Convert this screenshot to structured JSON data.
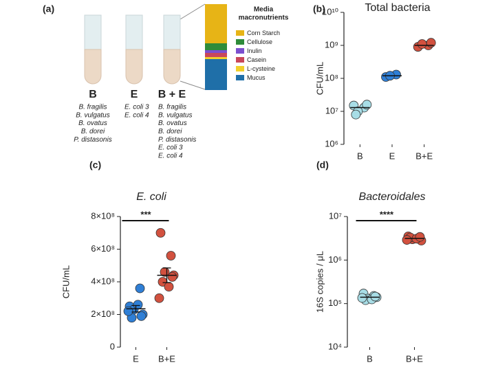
{
  "diagram": {
    "panel_label": "(a)",
    "groups": [
      {
        "label": "B",
        "color": "#7cc6c9",
        "species": [
          "B. fragilis",
          "B. vulgatus",
          "B. ovatus",
          "B. dorei",
          "P. distasonis"
        ]
      },
      {
        "label": "E",
        "color": "#3d86c6",
        "species": [
          "E. coli 3",
          "E. coli 4"
        ]
      },
      {
        "label": "B + E",
        "color": "#c0504d",
        "species": [
          "B. fragilis",
          "B. vulgatus",
          "B. ovatus",
          "B. dorei",
          "P. distasonis",
          "E. coli 3",
          "E. coli 4"
        ]
      }
    ],
    "media": {
      "title_lines": [
        "Media",
        "macronutrients"
      ],
      "items": [
        {
          "name": "Corn Starch",
          "color": "#e7b416"
        },
        {
          "name": "Cellulose",
          "color": "#2e8b3a"
        },
        {
          "name": "Inulin",
          "color": "#7b4fcf"
        },
        {
          "name": "Casein",
          "color": "#c9475a"
        },
        {
          "name": "L-cysteine",
          "color": "#f2d02b"
        },
        {
          "name": "Mucus",
          "color": "#1f6fa8"
        }
      ]
    }
  },
  "chart_data": [
    {
      "type": "strip",
      "panel_label": "(b)",
      "title": "Total bacteria",
      "y_label": "CFU/mL",
      "log_y": true,
      "categories": [
        "B",
        "E",
        "B+E"
      ],
      "colors": [
        "#a8dde6",
        "#2f7fd6",
        "#d2513f"
      ],
      "values": [
        [
          15000000,
          13000000,
          10000000,
          16000000,
          8000000
        ],
        [
          110000000,
          130000000,
          120000000
        ],
        [
          900000000,
          1000000000,
          1100000000,
          1200000000
        ]
      ],
      "center": [
        13000000,
        120000000,
        1000000000
      ],
      "ylim": [
        1000000,
        10000000000
      ],
      "yticks": [
        {
          "value": 1000000,
          "label": "10⁶"
        },
        {
          "value": 10000000,
          "label": "10⁷"
        },
        {
          "value": 100000000,
          "label": "10⁸"
        },
        {
          "value": 1000000000,
          "label": "10⁹"
        },
        {
          "value": 10000000000,
          "label": "10¹⁰"
        }
      ]
    },
    {
      "type": "strip",
      "panel_label": "(c)",
      "title": "E. coli",
      "title_italic": true,
      "y_label": "CFU/mL",
      "log_y": false,
      "categories": [
        "E",
        "B+E"
      ],
      "colors": [
        "#2f7fd6",
        "#d2513f"
      ],
      "values": [
        [
          250000000,
          360000000,
          230000000,
          200000000,
          180000000,
          260000000,
          220000000,
          190000000
        ],
        [
          700000000,
          560000000,
          460000000,
          440000000,
          400000000,
          370000000,
          300000000,
          430000000
        ]
      ],
      "center": [
        235000000,
        440000000
      ],
      "errors": [
        20000000,
        45000000
      ],
      "annotations": [
        "***"
      ],
      "ylim": [
        0,
        800000000
      ],
      "yticks": [
        0,
        {
          "value": 200000000,
          "label": "2×10⁸"
        },
        {
          "value": 400000000,
          "label": "4×10⁸"
        },
        {
          "value": 600000000,
          "label": "6×10⁸"
        },
        {
          "value": 800000000,
          "label": "8×10⁸"
        }
      ]
    },
    {
      "type": "strip",
      "panel_label": "(d)",
      "title": "Bacteroidales",
      "title_italic": true,
      "y_label": "16S copies / μL",
      "log_y": true,
      "categories": [
        "B",
        "B+E"
      ],
      "colors": [
        "#a8dde6",
        "#d2513f"
      ],
      "values": [
        [
          170000,
          150000,
          130000,
          140000,
          120000,
          125000,
          135000,
          145000
        ],
        [
          3500000,
          3200000,
          3000000,
          2800000,
          3300000,
          3100000,
          2900000,
          3400000
        ]
      ],
      "center": [
        140000,
        3150000
      ],
      "annotations": [
        "****"
      ],
      "ylim": [
        10000,
        10000000
      ],
      "yticks": [
        {
          "value": 10000,
          "label": "10⁴"
        },
        {
          "value": 100000,
          "label": "10⁵"
        },
        {
          "value": 1000000,
          "label": "10⁶"
        },
        {
          "value": 10000000,
          "label": "10⁷"
        }
      ]
    }
  ]
}
